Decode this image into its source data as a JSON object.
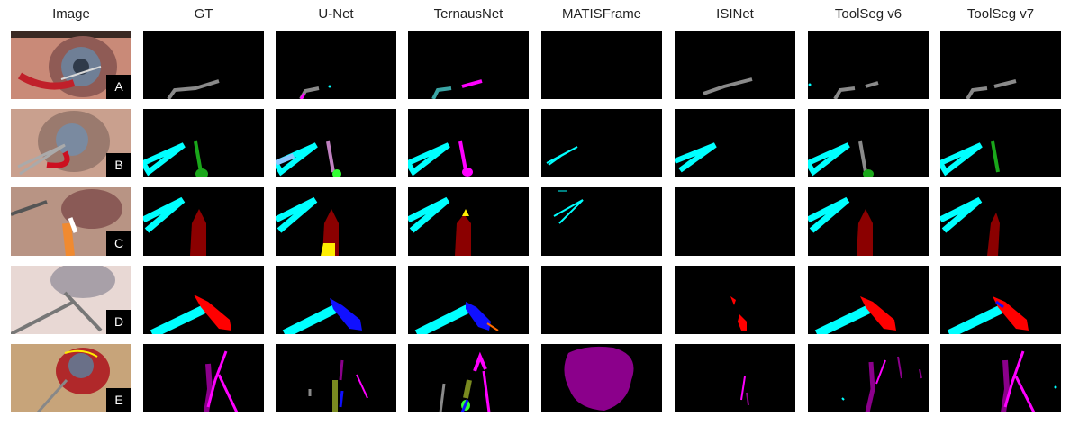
{
  "columns": [
    "Image",
    "GT",
    "U-Net",
    "TernausNet",
    "MATISFrame",
    "ISINet",
    "ToolSeg v6",
    "ToolSeg v7"
  ],
  "rows": [
    "A",
    "B",
    "C",
    "D",
    "E"
  ],
  "colors": {
    "cyan": "#00ffff",
    "gray": "#8a8a8a",
    "magenta": "#ff00ff",
    "purple": "#8b008b",
    "green": "#1aa71a",
    "dark_red": "#8b0000",
    "red": "#ff0000",
    "blue": "#1010ff",
    "yellow": "#ffee00",
    "olive": "#7a8a20"
  }
}
